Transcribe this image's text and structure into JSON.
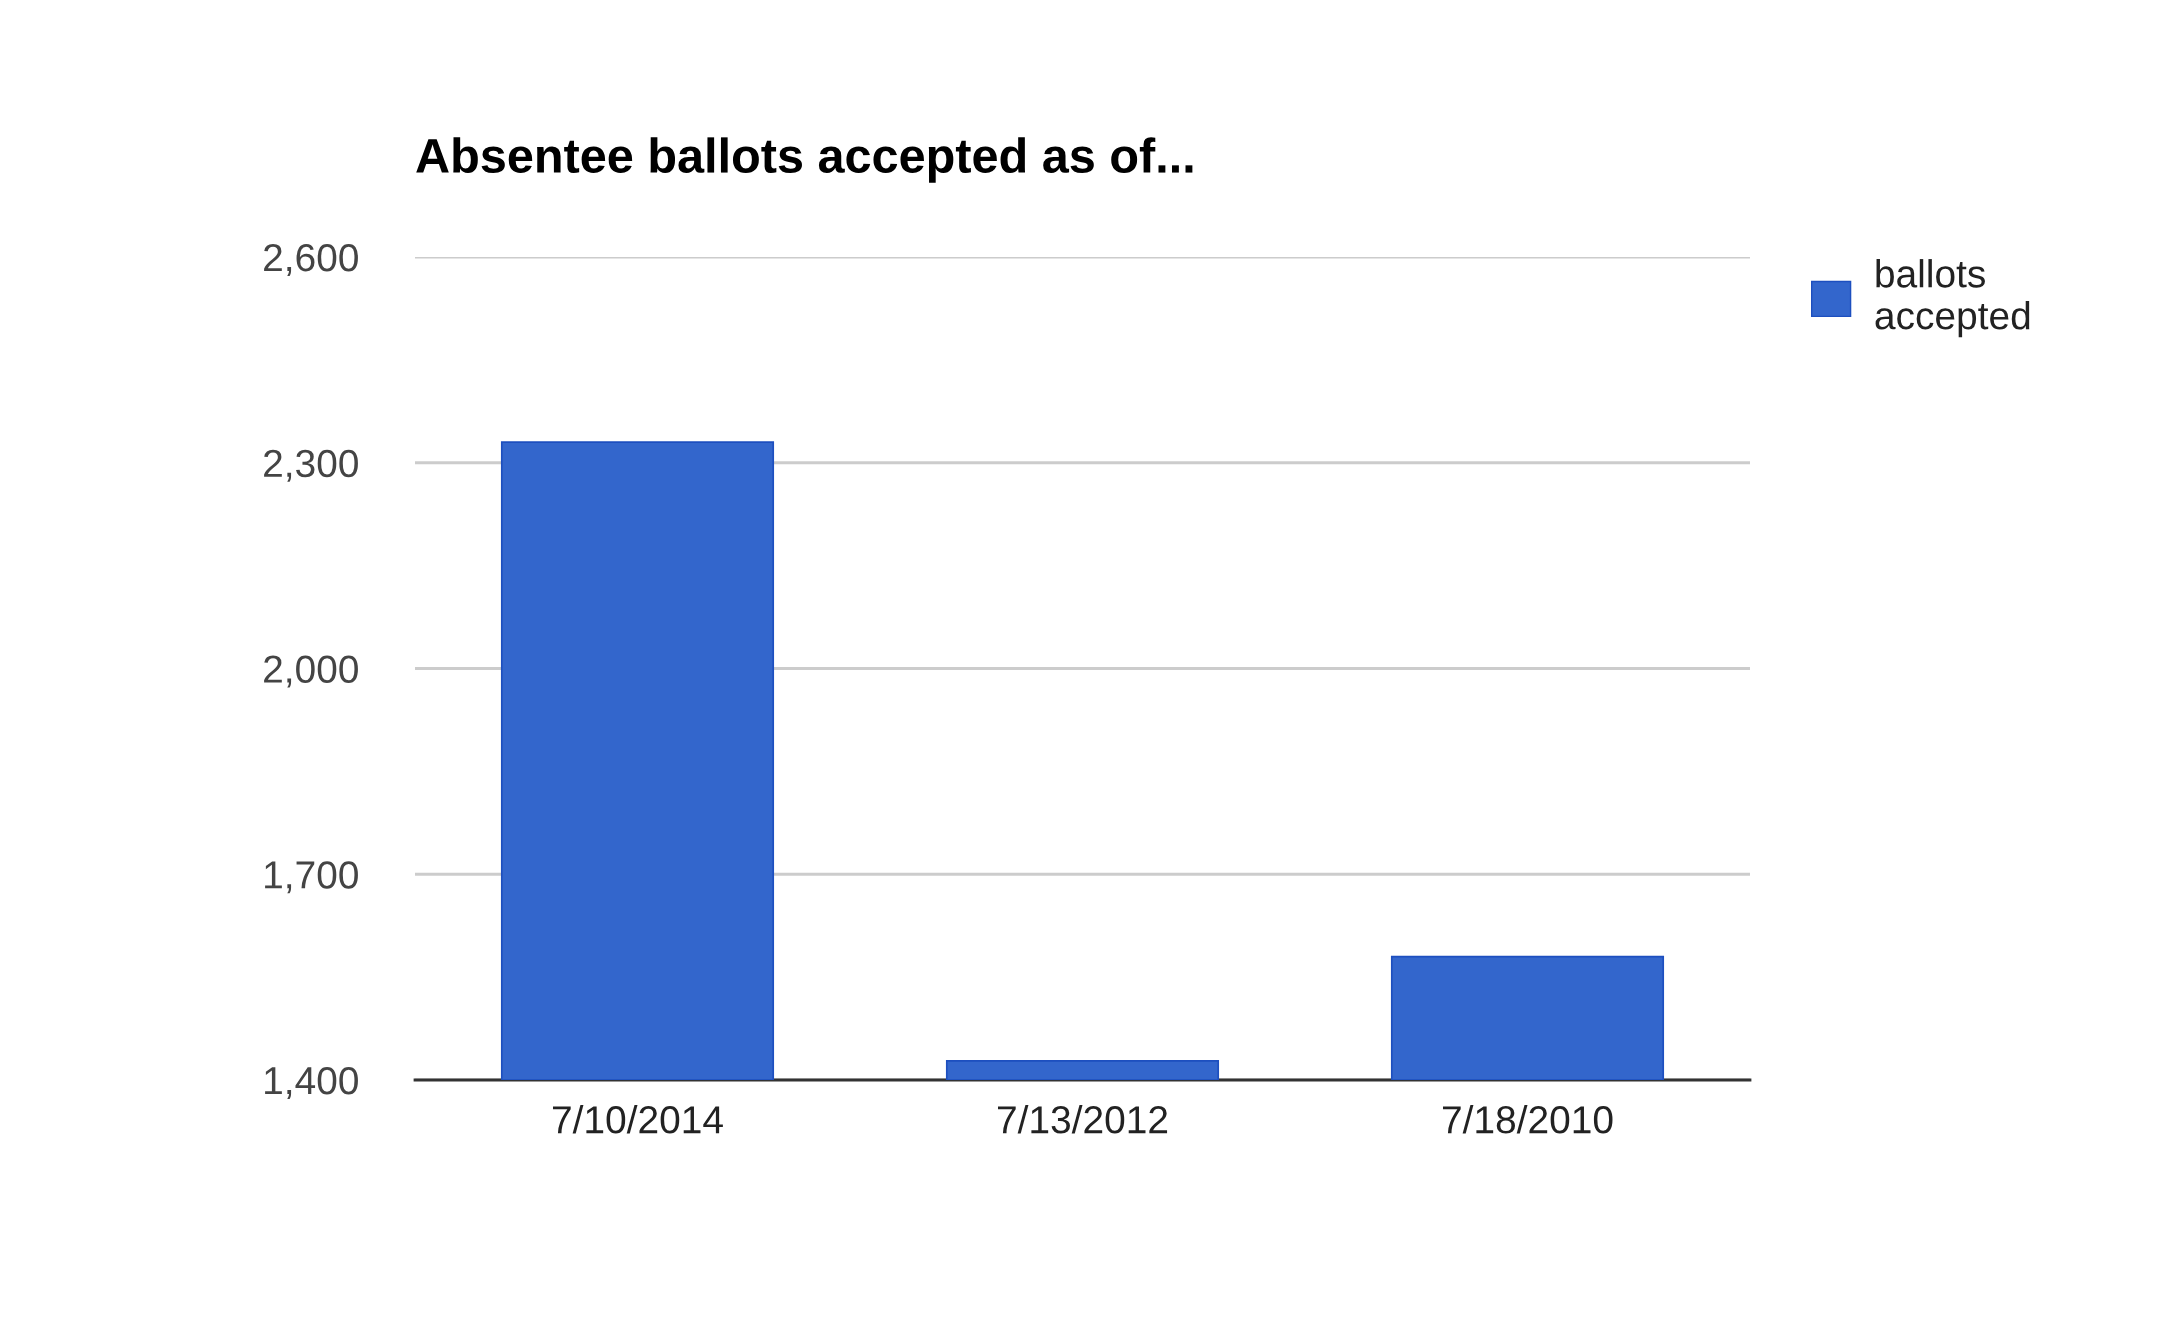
{
  "chart_data": {
    "type": "bar",
    "title": "Absentee ballots accepted as of...",
    "categories": [
      "7/10/2014",
      "7/13/2012",
      "7/18/2010"
    ],
    "series": [
      {
        "name": "ballots accepted",
        "color": "#3366cc",
        "values": [
          2330,
          1428,
          1580
        ]
      }
    ],
    "ylim": [
      1400,
      2600
    ],
    "yticks": [
      {
        "value": 1400,
        "label": "1,400"
      },
      {
        "value": 1700,
        "label": "1,700"
      },
      {
        "value": 2000,
        "label": "2,000"
      },
      {
        "value": 2300,
        "label": "2,300"
      },
      {
        "value": 2600,
        "label": "2,600"
      }
    ],
    "grid": "y",
    "legend": "right"
  }
}
